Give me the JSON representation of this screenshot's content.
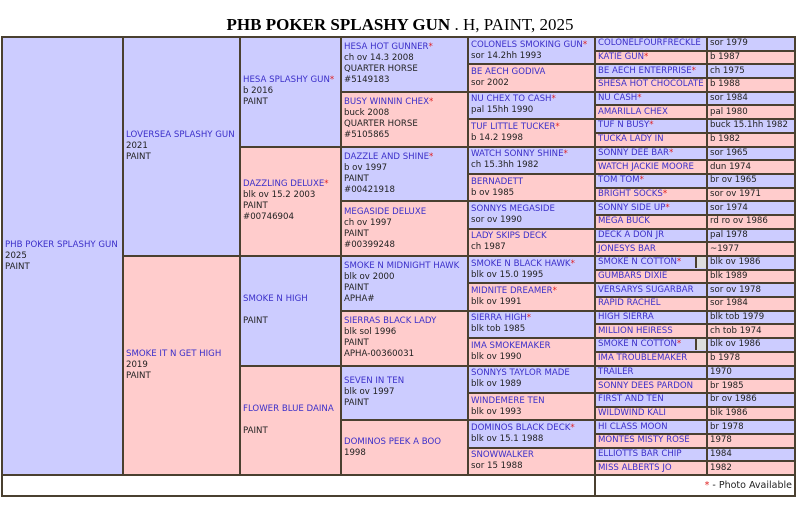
{
  "title": {
    "name": "PHB POKER SPLASHY GUN",
    "suffix": " . H, PAINT, 2025"
  },
  "colors": {
    "sire_bg": "#ccccff",
    "dam_bg": "#ffcccc",
    "name_link": "#3b2fc9",
    "photo_star": "#e02020"
  },
  "gen1": [
    {
      "name": "PHB POKER SPLASHY GUN",
      "lines": [
        "2025",
        "PAINT"
      ]
    }
  ],
  "gen2": [
    {
      "name": "LOVERSEA SPLASHY GUN",
      "lines": [
        "2021",
        "PAINT"
      ]
    },
    {
      "name": "SMOKE IT N GET HIGH",
      "lines": [
        "2019",
        "PAINT"
      ]
    }
  ],
  "gen3": [
    {
      "name": "HESA SPLASHY GUN",
      "photo": true,
      "lines": [
        "b 2016",
        "PAINT"
      ]
    },
    {
      "name": "DAZZLING DELUXE",
      "photo": true,
      "lines": [
        "blk ov 15.2 2003",
        "PAINT",
        "#00746904"
      ]
    },
    {
      "name": "SMOKE N HIGH",
      "lines": [
        " ",
        "PAINT"
      ]
    },
    {
      "name": "FLOWER BLUE DAINA",
      "lines": [
        " ",
        "PAINT"
      ]
    }
  ],
  "gen4": [
    {
      "name": "HESA HOT GUNNER",
      "photo": true,
      "lines": [
        "ch ov 14.3 2008",
        "QUARTER HORSE",
        "#5149183"
      ]
    },
    {
      "name": "BUSY WINNIN CHEX",
      "photo": true,
      "lines": [
        "buck 2008",
        "QUARTER HORSE",
        "#5105865"
      ]
    },
    {
      "name": "DAZZLE AND SHINE",
      "photo": true,
      "lines": [
        "b ov 1997",
        "PAINT",
        "#00421918"
      ]
    },
    {
      "name": "MEGASIDE DELUXE",
      "lines": [
        "ch ov 1997",
        "PAINT",
        "#00399248"
      ]
    },
    {
      "name": "SMOKE N MIDNIGHT HAWK",
      "lines": [
        "blk ov 2000",
        "PAINT",
        "APHA#"
      ]
    },
    {
      "name": "SIERRAS BLACK LADY",
      "lines": [
        "blk sol 1996",
        "PAINT",
        "APHA-00360031"
      ]
    },
    {
      "name": "SEVEN IN TEN",
      "lines": [
        "blk ov 1997",
        "PAINT"
      ]
    },
    {
      "name": "DOMINOS PEEK A BOO",
      "lines": [
        "1998"
      ]
    }
  ],
  "gen5": [
    {
      "name": "COLONELS SMOKING GUN",
      "photo": true,
      "lines": [
        "sor 14.2hh 1993"
      ]
    },
    {
      "name": "BE AECH GODIVA",
      "lines": [
        "sor 2002"
      ]
    },
    {
      "name": "NU CHEX TO CASH",
      "photo": true,
      "lines": [
        "pal 15hh 1990"
      ]
    },
    {
      "name": "TUF LITTLE TUCKER",
      "photo": true,
      "lines": [
        "b 14.2 1998"
      ]
    },
    {
      "name": "WATCH SONNY SHINE",
      "photo": true,
      "lines": [
        "ch 15.3hh 1982"
      ]
    },
    {
      "name": "BERNADETT",
      "lines": [
        "b ov 1985"
      ]
    },
    {
      "name": "SONNYS MEGASIDE",
      "lines": [
        "sor ov 1990"
      ]
    },
    {
      "name": "LADY SKIPS DECK",
      "lines": [
        "ch 1987"
      ]
    },
    {
      "name": "SMOKE N BLACK HAWK",
      "photo": true,
      "lines": [
        "blk ov 15.0 1995"
      ]
    },
    {
      "name": "MIDNITE DREAMER",
      "photo": true,
      "lines": [
        "blk ov 1991"
      ]
    },
    {
      "name": "SIERRA HIGH",
      "photo": true,
      "lines": [
        "blk tob 1985"
      ]
    },
    {
      "name": "IMA SMOKEMAKER",
      "lines": [
        "blk ov 1990"
      ]
    },
    {
      "name": "SONNYS TAYLOR MADE",
      "lines": [
        "blk ov 1989"
      ]
    },
    {
      "name": "WINDEMERE TEN",
      "lines": [
        "blk ov 1993"
      ]
    },
    {
      "name": "DOMINOS BLACK DECK",
      "photo": true,
      "lines": [
        "blk ov 15.1 1988"
      ]
    },
    {
      "name": "SNOWWALKER",
      "lines": [
        "sor 15 1988"
      ]
    }
  ],
  "gen6": [
    {
      "name": "COLONELFOURFRECKLE",
      "detail": "sor 1979"
    },
    {
      "name": "KATIE GUN",
      "photo": true,
      "detail": "b 1987"
    },
    {
      "name": "BE AECH ENTERPRISE",
      "photo": true,
      "detail": "ch 1975"
    },
    {
      "name": "SHESA HOT CHOCOLATE",
      "detail": "b 1988"
    },
    {
      "name": "NU CASH",
      "photo": true,
      "detail": "sor 1984"
    },
    {
      "name": "AMARILLA CHEX",
      "detail": "pal 1980"
    },
    {
      "name": "TUF N BUSY",
      "photo": true,
      "detail": "buck 15.1hh 1982"
    },
    {
      "name": "TUCKA LADY IN",
      "detail": "b 1982"
    },
    {
      "name": "SONNY DEE BAR",
      "photo": true,
      "detail": "sor 1965"
    },
    {
      "name": "WATCH JACKIE MOORE",
      "detail": "dun 1974"
    },
    {
      "name": "TOM TOM",
      "photo": true,
      "detail": "br ov 1965"
    },
    {
      "name": "BRIGHT SOCKS",
      "photo": true,
      "detail": "sor ov 1971"
    },
    {
      "name": "SONNY SIDE UP",
      "photo": true,
      "detail": "sor 1974"
    },
    {
      "name": "MEGA BUCK",
      "detail": "rd ro ov 1986"
    },
    {
      "name": "DECK A DON JR",
      "detail": "pal 1978"
    },
    {
      "name": "JONESYS BAR",
      "detail": "~1977"
    },
    {
      "name": "SMOKE N COTTON",
      "photo": true,
      "thumb": true,
      "detail": "blk ov 1986"
    },
    {
      "name": "GUMBARS DIXIE",
      "detail": "blk 1989"
    },
    {
      "name": "VERSARYS SUGARBAR",
      "detail": "sor ov 1978"
    },
    {
      "name": "RAPID RACHEL",
      "detail": "sor 1984"
    },
    {
      "name": "HIGH SIERRA",
      "detail": "blk tob 1979"
    },
    {
      "name": "MILLION HEIRESS",
      "detail": "ch tob 1974"
    },
    {
      "name": "SMOKE N COTTON",
      "photo": true,
      "thumb": true,
      "detail": "blk ov 1986"
    },
    {
      "name": "IMA TROUBLEMAKER",
      "detail": "b 1978"
    },
    {
      "name": "TRAILER",
      "detail": "1970"
    },
    {
      "name": "SONNY DEES PARDON",
      "detail": "br 1985"
    },
    {
      "name": "FIRST AND TEN",
      "detail": "br ov 1986"
    },
    {
      "name": "WILDWIND KALI",
      "detail": "blk 1986"
    },
    {
      "name": "HI CLASS MOON",
      "detail": "br 1978"
    },
    {
      "name": "MONTES MISTY ROSE",
      "detail": "1978"
    },
    {
      "name": "ELLIOTTS BAR CHIP",
      "detail": "1984"
    },
    {
      "name": "MISS ALBERTS JO",
      "detail": "1982"
    }
  ],
  "legend": {
    "star": "*",
    "text": " - Photo Available"
  }
}
